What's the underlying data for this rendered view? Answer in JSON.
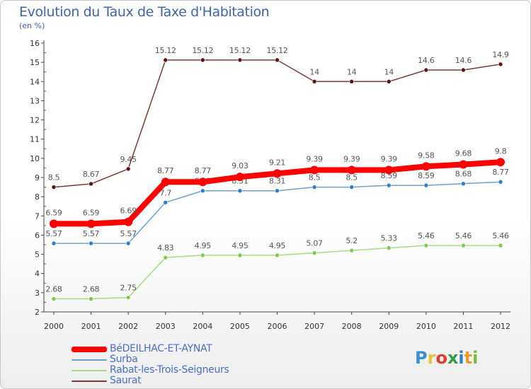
{
  "header": {
    "title": "Evolution du Taux de Taxe d'Habitation",
    "subtitle": "(en %)"
  },
  "brand": {
    "letters": [
      "P",
      "r",
      "o",
      "x",
      "i",
      "t",
      "i"
    ],
    "colors": [
      "#3a8fd3",
      "#e8c13a",
      "#e23b2e",
      "#2e9e44",
      "#2e7ecf",
      "#e89a2b",
      "#7abd3a"
    ]
  },
  "chart_data": {
    "type": "line",
    "title": "Evolution du Taux de Taxe d'Habitation",
    "subtitle": "(en %)",
    "xlabel": "",
    "ylabel": "",
    "categories": [
      "2000",
      "2001",
      "2002",
      "2003",
      "2004",
      "2005",
      "2006",
      "2007",
      "2008",
      "2009",
      "2010",
      "2011",
      "2012"
    ],
    "yticks": [
      "2",
      "3",
      "4",
      "5",
      "6",
      "7",
      "8",
      "9",
      "10",
      "11",
      "12",
      "13",
      "14",
      "15",
      "16"
    ],
    "ylim": [
      2,
      16
    ],
    "grid": false,
    "legend_position": "bottom-left",
    "series": [
      {
        "name": "BéDEILHAC-ET-AYNAT",
        "color": "#ff0000",
        "marker_color": "#ff0000",
        "emphasis": "thick",
        "values": [
          6.59,
          6.59,
          6.69,
          8.77,
          8.77,
          9.03,
          9.21,
          9.39,
          9.39,
          9.39,
          9.58,
          9.68,
          9.8
        ],
        "labels": [
          "6.59",
          "6.59",
          "6.69",
          "8.77",
          "8.77",
          "9.03",
          "9.21",
          "9.39",
          "9.39",
          "9.39",
          "9.58",
          "9.68",
          "9.8"
        ]
      },
      {
        "name": "Surba",
        "color": "#6e9fd1",
        "marker_color": "#2f7ccd",
        "emphasis": "normal",
        "values": [
          5.57,
          5.57,
          5.57,
          7.7,
          8.31,
          8.31,
          8.31,
          8.5,
          8.5,
          8.59,
          8.59,
          8.68,
          8.77
        ],
        "labels": [
          "5.57",
          "5.57",
          "5.57",
          "7.7",
          "8.31",
          "8.31",
          "8.31",
          "8.5",
          "8.5",
          "8.59",
          "8.59",
          "8.68",
          "8.77"
        ]
      },
      {
        "name": "Rabat-les-Trois-Seigneurs",
        "color": "#a6dc7e",
        "marker_color": "#7fc94f",
        "emphasis": "normal",
        "values": [
          2.68,
          2.68,
          2.75,
          4.83,
          4.95,
          4.95,
          4.95,
          5.07,
          5.2,
          5.33,
          5.46,
          5.46,
          5.46
        ],
        "labels": [
          "2.68",
          "2.68",
          "2.75",
          "4.83",
          "4.95",
          "4.95",
          "4.95",
          "5.07",
          "5.2",
          "5.33",
          "5.46",
          "5.46",
          "5.46"
        ]
      },
      {
        "name": "Saurat",
        "color": "#7a3a3a",
        "marker_color": "#5c1414",
        "emphasis": "normal",
        "values": [
          8.5,
          8.67,
          9.45,
          15.12,
          15.12,
          15.12,
          15.12,
          14,
          14,
          14,
          14.6,
          14.6,
          14.9
        ],
        "labels": [
          "8.5",
          "8.67",
          "9.45",
          "15.12",
          "15.12",
          "15.12",
          "15.12",
          "14",
          "14",
          "14",
          "14.6",
          "14.6",
          "14.9"
        ]
      }
    ]
  }
}
